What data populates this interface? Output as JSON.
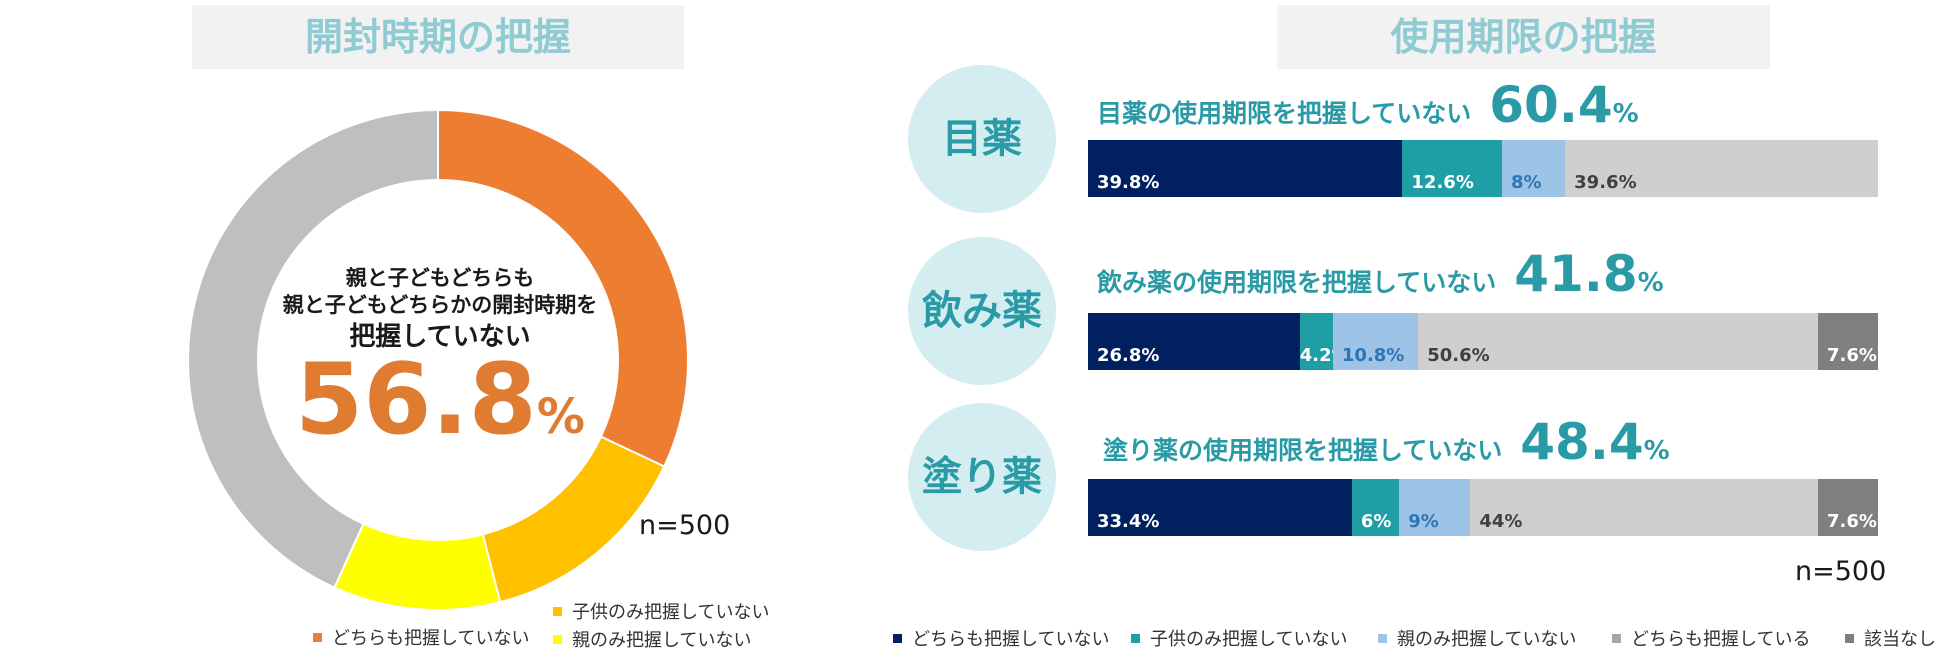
{
  "chart_data": [
    {
      "type": "pie",
      "title": "開封時期の把握",
      "center_text": [
        "親と子どもどちらも",
        "親と子どもどちらかの開封時期を",
        "把握していない"
      ],
      "center_value": "56.8",
      "center_unit": "%",
      "note": "n=500",
      "slices": [
        {
          "name": "どちらも把握していない",
          "value": 32.0,
          "color": "#ed7d31"
        },
        {
          "name": "子供のみ把握していない",
          "value": 14.0,
          "color": "#ffc000"
        },
        {
          "name": "親のみ把握していない",
          "value": 10.8,
          "color": "#ffff00"
        },
        {
          "name": "",
          "value": 43.2,
          "color": "#bfbfbf"
        }
      ]
    },
    {
      "type": "bar",
      "orientation": "horizontal-stacked",
      "title": "使用期限の把握",
      "note": "n=500",
      "categories": [
        "目薬",
        "飲み薬",
        "塗り薬"
      ],
      "headings": [
        {
          "text": "目薬の使用期限を把握していない",
          "value": "60.4",
          "unit": "%"
        },
        {
          "text": "飲み薬の使用期限を把握していない",
          "value": "41.8",
          "unit": "%"
        },
        {
          "text": "塗り薬の使用期限を把握していない",
          "value": "48.4",
          "unit": "%"
        }
      ],
      "series": [
        {
          "name": "どちらも把握していない",
          "color": "#002060",
          "label_color": "#ffffff",
          "values": [
            39.8,
            26.8,
            33.4
          ],
          "labels": [
            "39.8%",
            "26.8%",
            "33.4%"
          ]
        },
        {
          "name": "子供のみ把握していない",
          "color": "#1f9ea6",
          "label_color": "#ffffff",
          "values": [
            12.6,
            4.2,
            6
          ],
          "labels": [
            "12.6%",
            "4.2%",
            "6%"
          ]
        },
        {
          "name": "親のみ把握していない",
          "color": "#9dc3e6",
          "label_color": "#2e75b6",
          "values": [
            8,
            10.8,
            9
          ],
          "labels": [
            "8%",
            "10.8%",
            "9%"
          ]
        },
        {
          "name": "どちらも把握している",
          "color": "#d0cece",
          "label_color": "#404040",
          "values": [
            39.6,
            50.6,
            44
          ],
          "labels": [
            "39.6%",
            "50.6%",
            "44%"
          ]
        },
        {
          "name": "該当なし",
          "color": "#7f7f7f",
          "label_color": "#ffffff",
          "values": [
            0,
            7.6,
            7.6
          ],
          "labels": [
            "",
            "7.6%",
            "7.6%"
          ]
        }
      ],
      "xlim": [
        0,
        100
      ]
    }
  ],
  "colors": {
    "title_bg": "#f2f2f2",
    "title_text": "#8fcbd3",
    "accent": "#2a9ba6",
    "orange": "#e07b32",
    "circle_bg": "#d3edf0"
  }
}
